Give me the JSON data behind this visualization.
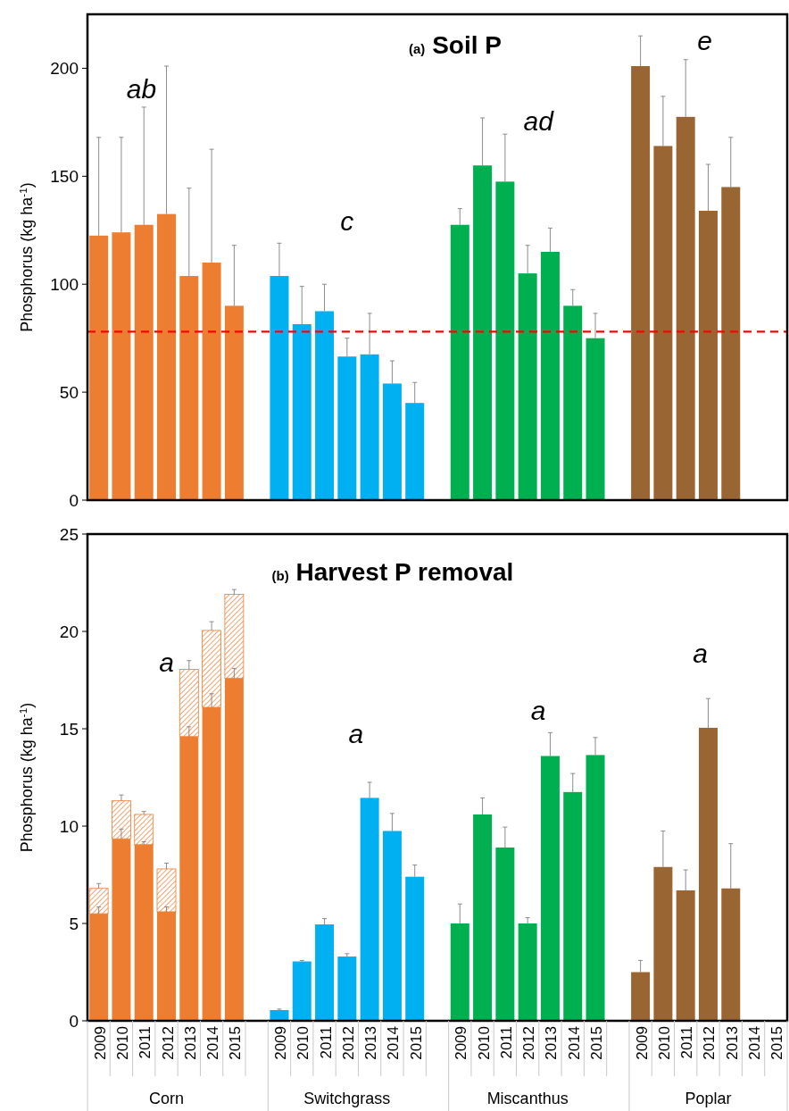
{
  "chart_data": [
    {
      "type": "bar",
      "title": "(a) Soil P",
      "ylabel": "Phosphorus (kg ha$^{-1}$)",
      "categories": [
        "2009",
        "2010",
        "2011",
        "2012",
        "2013",
        "2014",
        "2015",
        null,
        "2009",
        "2010",
        "2011",
        "2012",
        "2013",
        "2014",
        "2015",
        null,
        "2009",
        "2010",
        "2011",
        "2012",
        "2013",
        "2014",
        "2015",
        null,
        "2009",
        "2010",
        "2011",
        "2012",
        "2013",
        "2014",
        "2015"
      ],
      "series": [
        {
          "color": "#ed7d31",
          "values": [
            122.5,
            124,
            127.5,
            132.5,
            103.8,
            110,
            90,
            null,
            null,
            null,
            null,
            null,
            null,
            null,
            null,
            null,
            null,
            null,
            null,
            null,
            null,
            null,
            null,
            null,
            null,
            null,
            null,
            null,
            null,
            null,
            null
          ],
          "errors": [
            [
              122.5,
              168
            ],
            [
              124,
              168
            ],
            [
              127.5,
              182
            ],
            [
              132.5,
              201
            ],
            [
              103.8,
              144.5
            ],
            [
              110,
              162.5
            ],
            [
              90,
              118
            ],
            null,
            null,
            null,
            null,
            null,
            null,
            null,
            null,
            null,
            null,
            null,
            null,
            null,
            null,
            null,
            null,
            null,
            null,
            null,
            null,
            null,
            null,
            null,
            null
          ]
        },
        {
          "color": "#00b0f0",
          "values": [
            null,
            null,
            null,
            null,
            null,
            null,
            null,
            null,
            103.8,
            81.5,
            87.5,
            66.5,
            67.5,
            54,
            45,
            null,
            null,
            null,
            null,
            null,
            null,
            null,
            null,
            null,
            null,
            null,
            null,
            null,
            null,
            null,
            null
          ],
          "errors": [
            null,
            null,
            null,
            null,
            null,
            null,
            null,
            null,
            [
              103.8,
              119
            ],
            [
              81.5,
              99
            ],
            [
              87.5,
              100
            ],
            [
              66.5,
              75
            ],
            [
              67.5,
              86.5
            ],
            [
              54,
              64.5
            ],
            [
              45,
              54.5
            ],
            null,
            null,
            null,
            null,
            null,
            null,
            null,
            null,
            null,
            null,
            null,
            null,
            null,
            null,
            null,
            null
          ]
        },
        {
          "color": "#00b050",
          "values": [
            null,
            null,
            null,
            null,
            null,
            null,
            null,
            null,
            null,
            null,
            null,
            null,
            null,
            null,
            null,
            null,
            127.5,
            155,
            147.5,
            105,
            115,
            90,
            75,
            null,
            null,
            null,
            null,
            null,
            null,
            null,
            null
          ],
          "errors": [
            null,
            null,
            null,
            null,
            null,
            null,
            null,
            null,
            null,
            null,
            null,
            null,
            null,
            null,
            null,
            null,
            [
              127.5,
              135
            ],
            [
              155,
              177
            ],
            [
              147.5,
              169.5
            ],
            [
              105,
              118
            ],
            [
              115,
              126
            ],
            [
              90,
              97.5
            ],
            [
              75,
              86.5
            ],
            null,
            null,
            null,
            null,
            null,
            null,
            null,
            null
          ]
        },
        {
          "color": "#996633",
          "values": [
            null,
            null,
            null,
            null,
            null,
            null,
            null,
            null,
            null,
            null,
            null,
            null,
            null,
            null,
            null,
            null,
            null,
            null,
            null,
            null,
            null,
            null,
            null,
            null,
            201,
            164,
            177.5,
            134,
            145,
            null,
            null
          ],
          "errors": [
            null,
            null,
            null,
            null,
            null,
            null,
            null,
            null,
            null,
            null,
            null,
            null,
            null,
            null,
            null,
            null,
            null,
            null,
            null,
            null,
            null,
            null,
            null,
            null,
            [
              201,
              215
            ],
            [
              164,
              187
            ],
            [
              177.5,
              204
            ],
            [
              134,
              155.5
            ],
            [
              145,
              168
            ],
            null,
            null
          ]
        }
      ],
      "ylim": [
        0,
        225
      ],
      "yticks": [
        0,
        50,
        100,
        150,
        200
      ],
      "tick_labels": "y",
      "ref_lines": [
        {
          "axis": "y",
          "value": 78,
          "color": "#ff0000",
          "line_style": "dashed"
        }
      ],
      "annotations": [
        "ab",
        "c",
        "ad",
        "e"
      ]
    },
    {
      "type": "bar",
      "title": "(b) Harvest P removal",
      "ylabel": "Phosphorus (kg ha$^{-1}$)",
      "stacked": true,
      "categories": [
        "2009",
        "2010",
        "2011",
        "2012",
        "2013",
        "2014",
        "2015",
        null,
        "2009",
        "2010",
        "2011",
        "2012",
        "2013",
        "2014",
        "2015",
        null,
        "2009",
        "2010",
        "2011",
        "2012",
        "2013",
        "2014",
        "2015",
        null,
        "2009",
        "2010",
        "2011",
        "2012",
        "2013",
        "2014",
        "2015"
      ],
      "series": [
        {
          "name": "Corn",
          "color": "#ed7d31",
          "values": [
            5.5,
            9.35,
            9.05,
            5.6,
            14.6,
            16.1,
            17.6,
            null,
            null,
            null,
            null,
            null,
            null,
            null,
            null,
            null,
            null,
            null,
            null,
            null,
            null,
            null,
            null,
            null,
            null,
            null,
            null,
            null,
            null,
            null,
            null
          ],
          "errors": [
            [
              5.5,
              5.85
            ],
            [
              9.35,
              9.85
            ],
            [
              9.05,
              9.2
            ],
            [
              5.6,
              5.85
            ],
            [
              14.6,
              15.1
            ],
            [
              16.1,
              16.8
            ],
            [
              17.6,
              18.1
            ],
            null,
            null,
            null,
            null,
            null,
            null,
            null,
            null,
            null,
            null,
            null,
            null,
            null,
            null,
            null,
            null,
            null,
            null,
            null,
            null,
            null,
            null,
            null,
            null
          ]
        },
        {
          "color": "#ed7d31",
          "values": [
            1.3,
            1.95,
            1.55,
            2.2,
            3.45,
            3.95,
            4.3,
            null,
            null,
            null,
            null,
            null,
            null,
            null,
            null,
            null,
            null,
            null,
            null,
            null,
            null,
            null,
            null,
            null,
            null,
            null,
            null,
            null,
            null,
            null,
            null
          ],
          "errors": [
            [
              6.8,
              7.05
            ],
            [
              11.3,
              11.6
            ],
            [
              10.6,
              10.75
            ],
            [
              7.8,
              8.1
            ],
            [
              18.05,
              18.5
            ],
            [
              20.05,
              20.5
            ],
            [
              21.9,
              22.15
            ],
            null,
            null,
            null,
            null,
            null,
            null,
            null,
            null,
            null,
            null,
            null,
            null,
            null,
            null,
            null,
            null,
            null,
            null,
            null,
            null,
            null,
            null,
            null,
            null
          ]
        },
        {
          "name": "Switchgrass",
          "color": "#00b0f0",
          "values": [
            null,
            null,
            null,
            null,
            null,
            null,
            null,
            null,
            0.55,
            3.05,
            4.95,
            3.3,
            11.45,
            9.75,
            7.4,
            null,
            null,
            null,
            null,
            null,
            null,
            null,
            null,
            null,
            null,
            null,
            null,
            null,
            null,
            null,
            null
          ],
          "errors": [
            null,
            null,
            null,
            null,
            null,
            null,
            null,
            null,
            [
              0.55,
              0.6
            ],
            [
              3.05,
              3.1
            ],
            [
              4.95,
              5.25
            ],
            [
              3.3,
              3.45
            ],
            [
              11.45,
              12.25
            ],
            [
              9.75,
              10.65
            ],
            [
              7.4,
              8
            ],
            null,
            null,
            null,
            null,
            null,
            null,
            null,
            null,
            null,
            null,
            null,
            null,
            null,
            null,
            null,
            null
          ]
        },
        {
          "name": "Miscanthus",
          "color": "#00b050",
          "values": [
            null,
            null,
            null,
            null,
            null,
            null,
            null,
            null,
            null,
            null,
            null,
            null,
            null,
            null,
            null,
            null,
            5,
            10.6,
            8.9,
            5,
            13.6,
            11.75,
            13.65,
            null,
            null,
            null,
            null,
            null,
            null,
            null,
            null
          ],
          "errors": [
            null,
            null,
            null,
            null,
            null,
            null,
            null,
            null,
            null,
            null,
            null,
            null,
            null,
            null,
            null,
            null,
            [
              5,
              6
            ],
            [
              10.6,
              11.45
            ],
            [
              8.9,
              9.95
            ],
            [
              5,
              5.3
            ],
            [
              13.6,
              14.8
            ],
            [
              11.75,
              12.7
            ],
            [
              13.65,
              14.55
            ],
            null,
            null,
            null,
            null,
            null,
            null,
            null,
            null
          ]
        },
        {
          "name": "Poplar",
          "color": "#996633",
          "values": [
            null,
            null,
            null,
            null,
            null,
            null,
            null,
            null,
            null,
            null,
            null,
            null,
            null,
            null,
            null,
            null,
            null,
            null,
            null,
            null,
            null,
            null,
            null,
            null,
            2.5,
            7.9,
            6.7,
            15.05,
            6.8,
            null,
            null
          ],
          "errors": [
            null,
            null,
            null,
            null,
            null,
            null,
            null,
            null,
            null,
            null,
            null,
            null,
            null,
            null,
            null,
            null,
            null,
            null,
            null,
            null,
            null,
            null,
            null,
            null,
            [
              2.5,
              3.1
            ],
            [
              7.9,
              9.75
            ],
            [
              6.7,
              7.75
            ],
            [
              15.05,
              16.55
            ],
            [
              6.8,
              9.1
            ],
            null,
            null
          ]
        }
      ],
      "ylim": [
        0,
        25
      ],
      "yticks": [
        0,
        5,
        10,
        15,
        20,
        25
      ],
      "annotations": [
        "a",
        "a",
        "a",
        "a"
      ]
    }
  ]
}
